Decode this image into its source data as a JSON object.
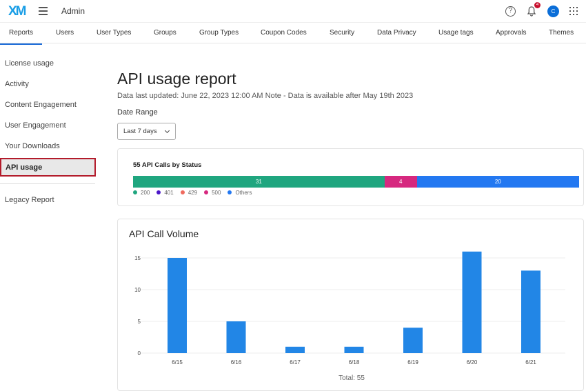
{
  "header": {
    "logo": "XM",
    "section": "Admin",
    "help": "?",
    "notif_count": "4",
    "avatar": "C"
  },
  "tabs": [
    "Reports",
    "Users",
    "User Types",
    "Groups",
    "Group Types",
    "Coupon Codes",
    "Security",
    "Data Privacy",
    "Usage tags",
    "Approvals",
    "Themes"
  ],
  "sidebar": {
    "items": [
      "License usage",
      "Activity",
      "Content Engagement",
      "User Engagement",
      "Your Downloads",
      "API usage"
    ],
    "legacy": "Legacy Report"
  },
  "main": {
    "title": "API usage report",
    "subtitle": "Data last updated: June 22, 2023 12:00 AM Note - Data is available after May 19th 2023",
    "date_range_label": "Date Range",
    "date_range_value": "Last 7 days"
  },
  "status": {
    "title": "55 API Calls by Status",
    "segments": [
      {
        "label": "31",
        "value": 31,
        "color": "#1fa67f"
      },
      {
        "label": "4",
        "value": 4,
        "color": "#d6287f"
      },
      {
        "label": "20",
        "value": 20,
        "color": "#2378f1"
      }
    ],
    "legend": [
      {
        "label": "200",
        "color": "#1fa67f"
      },
      {
        "label": "401",
        "color": "#4b17c9"
      },
      {
        "label": "429",
        "color": "#ef6a5e"
      },
      {
        "label": "500",
        "color": "#d6287f"
      },
      {
        "label": "Others",
        "color": "#2378f1"
      }
    ]
  },
  "chart_data": {
    "type": "bar",
    "title": "API Call Volume",
    "categories": [
      "6/15",
      "6/16",
      "6/17",
      "6/18",
      "6/19",
      "6/20",
      "6/21"
    ],
    "values": [
      15,
      5,
      1,
      1,
      4,
      16,
      13
    ],
    "yticks": [
      "0",
      "5",
      "10",
      "15"
    ],
    "ylim": [
      0,
      17.5
    ],
    "grid": true,
    "color": "#2286e6",
    "footer": "Total: 55"
  }
}
